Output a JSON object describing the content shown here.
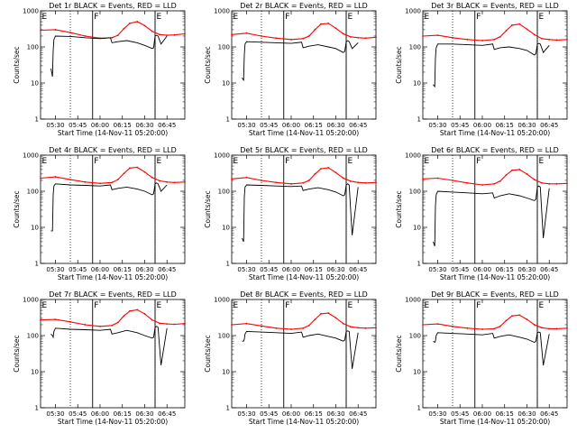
{
  "chart_data": {
    "type": "line",
    "y_scale": "log",
    "ylim": [
      1,
      1000
    ],
    "ylabel": "Counts/sec",
    "xlabel": "Start Time (14-Nov-11 05:20:00)",
    "y_ticks": [
      {
        "value": 1,
        "label": "1"
      },
      {
        "value": 10,
        "label": "10"
      },
      {
        "value": 100,
        "label": "100"
      },
      {
        "value": 1000,
        "label": "1000"
      }
    ],
    "x_ticks": [
      "05:30",
      "05:45",
      "06:00",
      "06:15",
      "06:30",
      "06:45"
    ],
    "x_tick_minutes": [
      10,
      25,
      40,
      55,
      70,
      85
    ],
    "xlim_minutes": [
      0,
      97
    ],
    "colors": {
      "events": "#000000",
      "lld": "#ff0000",
      "frame": "#000000"
    },
    "flags": [
      {
        "label": "E",
        "minute": 0
      },
      {
        "label": "F",
        "minute": 35
      },
      {
        "label": "E",
        "minute": 77
      }
    ],
    "dotted_marks_minutes": [
      20,
      77
    ],
    "panels": [
      {
        "title": "Det 1r BLACK = Events, RED = LLD",
        "series": [
          {
            "name": "LLD",
            "color": "#ff0000",
            "x": [
              0,
              10,
              20,
              30,
              40,
              48,
              52,
              56,
              60,
              65,
              70,
              75,
              80,
              85,
              90,
              97
            ],
            "y": [
              290,
              300,
              250,
              200,
              175,
              180,
              210,
              320,
              450,
              500,
              390,
              270,
              220,
              210,
              215,
              230
            ]
          },
          {
            "name": "Events",
            "color": "#000000",
            "x": [
              7,
              8,
              8.5,
              9,
              10,
              20,
              30,
              40,
              47,
              48,
              52,
              58,
              65,
              70,
              75,
              76,
              77,
              78,
              79,
              81,
              85
            ],
            "y": [
              25,
              15,
              80,
              160,
              200,
              195,
              180,
              170,
              180,
              130,
              140,
              150,
              130,
              110,
              90,
              95,
              200,
              210,
              200,
              120,
              200
            ]
          }
        ]
      },
      {
        "title": "Det 2r BLACK = Events, RED = LLD",
        "series": [
          {
            "name": "LLD",
            "color": "#ff0000",
            "x": [
              0,
              10,
              20,
              30,
              40,
              48,
              52,
              56,
              60,
              65,
              70,
              75,
              80,
              85,
              90,
              97
            ],
            "y": [
              220,
              240,
              200,
              175,
              160,
              170,
              200,
              300,
              430,
              450,
              330,
              230,
              190,
              180,
              175,
              185
            ]
          },
          {
            "name": "Events",
            "color": "#000000",
            "x": [
              7,
              8,
              8.5,
              9,
              10,
              20,
              30,
              40,
              47,
              48,
              52,
              58,
              65,
              70,
              75,
              76,
              77,
              78,
              79,
              81,
              85
            ],
            "y": [
              14,
              12,
              60,
              120,
              140,
              135,
              130,
              125,
              135,
              95,
              105,
              115,
              100,
              90,
              70,
              75,
              140,
              150,
              140,
              90,
              130
            ]
          }
        ]
      },
      {
        "title": "Det 3r BLACK = Events, RED = LLD",
        "series": [
          {
            "name": "LLD",
            "color": "#ff0000",
            "x": [
              0,
              10,
              20,
              30,
              40,
              48,
              52,
              56,
              60,
              65,
              70,
              75,
              80,
              85,
              90,
              97
            ],
            "y": [
              200,
              210,
              180,
              160,
              150,
              160,
              190,
              280,
              400,
              430,
              310,
              220,
              170,
              160,
              155,
              160
            ]
          },
          {
            "name": "Events",
            "color": "#000000",
            "x": [
              7,
              8,
              8.5,
              9,
              10,
              20,
              30,
              40,
              47,
              48,
              52,
              58,
              65,
              70,
              75,
              76,
              77,
              78,
              79,
              81,
              85
            ],
            "y": [
              9,
              8,
              50,
              95,
              120,
              120,
              115,
              110,
              120,
              85,
              95,
              100,
              90,
              80,
              60,
              65,
              120,
              125,
              120,
              70,
              110
            ]
          }
        ]
      },
      {
        "title": "Det 4r BLACK = Events, RED = LLD",
        "series": [
          {
            "name": "LLD",
            "color": "#ff0000",
            "x": [
              0,
              10,
              20,
              30,
              40,
              48,
              52,
              56,
              60,
              65,
              70,
              75,
              80,
              85,
              90,
              97
            ],
            "y": [
              230,
              250,
              210,
              180,
              165,
              175,
              210,
              310,
              440,
              460,
              340,
              240,
              195,
              180,
              175,
              180
            ]
          },
          {
            "name": "Events",
            "color": "#000000",
            "x": [
              7,
              8,
              8.5,
              9,
              10,
              20,
              30,
              40,
              47,
              48,
              52,
              58,
              65,
              70,
              75,
              76,
              77,
              78,
              79,
              81,
              85
            ],
            "y": [
              8,
              8,
              80,
              140,
              160,
              150,
              145,
              140,
              150,
              110,
              120,
              130,
              115,
              100,
              80,
              85,
              160,
              170,
              160,
              100,
              150
            ]
          }
        ]
      },
      {
        "title": "Det 5r BLACK = Events, RED = LLD",
        "series": [
          {
            "name": "LLD",
            "color": "#ff0000",
            "x": [
              0,
              10,
              20,
              30,
              40,
              48,
              52,
              56,
              60,
              65,
              70,
              75,
              80,
              85,
              90,
              97
            ],
            "y": [
              220,
              240,
              200,
              175,
              160,
              170,
              200,
              300,
              420,
              450,
              330,
              230,
              190,
              175,
              170,
              175
            ]
          },
          {
            "name": "Events",
            "color": "#000000",
            "x": [
              7,
              8,
              8.5,
              9,
              10,
              20,
              30,
              40,
              47,
              48,
              52,
              58,
              65,
              70,
              75,
              76,
              77,
              78,
              79,
              81,
              85
            ],
            "y": [
              5,
              4,
              70,
              130,
              150,
              145,
              140,
              135,
              140,
              105,
              115,
              125,
              110,
              95,
              75,
              80,
              150,
              160,
              150,
              6,
              130
            ]
          }
        ]
      },
      {
        "title": "Det 6r BLACK = Events, RED = LLD",
        "series": [
          {
            "name": "LLD",
            "color": "#ff0000",
            "x": [
              0,
              10,
              20,
              30,
              40,
              48,
              52,
              56,
              60,
              65,
              70,
              75,
              80,
              85,
              90,
              97
            ],
            "y": [
              220,
              230,
              200,
              170,
              150,
              160,
              190,
              280,
              380,
              400,
              300,
              210,
              170,
              160,
              160,
              165
            ]
          },
          {
            "name": "Events",
            "color": "#000000",
            "x": [
              7,
              8,
              8.5,
              9,
              10,
              20,
              30,
              40,
              47,
              48,
              52,
              58,
              65,
              70,
              75,
              76,
              77,
              78,
              79,
              81,
              85
            ],
            "y": [
              4,
              3,
              40,
              80,
              100,
              95,
              90,
              85,
              90,
              65,
              75,
              85,
              75,
              65,
              55,
              60,
              130,
              140,
              130,
              5,
              120
            ]
          }
        ]
      },
      {
        "title": "Det 7r BLACK = Events, RED = LLD",
        "series": [
          {
            "name": "LLD",
            "color": "#ff0000",
            "x": [
              0,
              10,
              20,
              30,
              40,
              48,
              52,
              56,
              60,
              65,
              70,
              75,
              80,
              85,
              90,
              97
            ],
            "y": [
              270,
              280,
              240,
              200,
              180,
              190,
              230,
              350,
              480,
              520,
              400,
              270,
              220,
              210,
              205,
              215
            ]
          },
          {
            "name": "Events",
            "color": "#000000",
            "x": [
              7,
              8,
              8.5,
              9,
              10,
              20,
              30,
              40,
              47,
              48,
              52,
              58,
              65,
              70,
              75,
              76,
              77,
              78,
              79,
              81,
              85
            ],
            "y": [
              110,
              100,
              90,
              130,
              160,
              150,
              145,
              140,
              150,
              110,
              120,
              140,
              120,
              100,
              85,
              90,
              170,
              180,
              170,
              15,
              160
            ]
          }
        ]
      },
      {
        "title": "Det 8r BLACK = Events, RED = LLD",
        "series": [
          {
            "name": "LLD",
            "color": "#ff0000",
            "x": [
              0,
              10,
              20,
              30,
              40,
              48,
              52,
              56,
              60,
              65,
              70,
              75,
              80,
              85,
              90,
              97
            ],
            "y": [
              200,
              215,
              185,
              160,
              150,
              160,
              190,
              280,
              400,
              420,
              310,
              215,
              175,
              165,
              160,
              165
            ]
          },
          {
            "name": "Events",
            "color": "#000000",
            "x": [
              7,
              8,
              8.5,
              9,
              10,
              20,
              30,
              40,
              47,
              48,
              52,
              58,
              65,
              70,
              75,
              76,
              77,
              78,
              79,
              81,
              85
            ],
            "y": [
              70,
              70,
              80,
              110,
              130,
              125,
              120,
              115,
              125,
              90,
              100,
              110,
              95,
              85,
              70,
              75,
              130,
              135,
              130,
              12,
              120
            ]
          }
        ]
      },
      {
        "title": "Det 9r BLACK = Events, RED = LLD",
        "series": [
          {
            "name": "LLD",
            "color": "#ff0000",
            "x": [
              0,
              10,
              20,
              30,
              40,
              48,
              52,
              56,
              60,
              65,
              70,
              75,
              80,
              85,
              90,
              97
            ],
            "y": [
              200,
              210,
              180,
              160,
              150,
              155,
              180,
              260,
              350,
              370,
              280,
              200,
              165,
              155,
              155,
              160
            ]
          },
          {
            "name": "Events",
            "color": "#000000",
            "x": [
              7,
              8,
              8.5,
              9,
              10,
              20,
              30,
              40,
              47,
              48,
              52,
              58,
              65,
              70,
              75,
              76,
              77,
              78,
              79,
              81,
              85
            ],
            "y": [
              70,
              65,
              70,
              100,
              120,
              115,
              110,
              105,
              115,
              85,
              95,
              105,
              90,
              80,
              65,
              70,
              120,
              125,
              120,
              15,
              110
            ]
          }
        ]
      }
    ]
  }
}
